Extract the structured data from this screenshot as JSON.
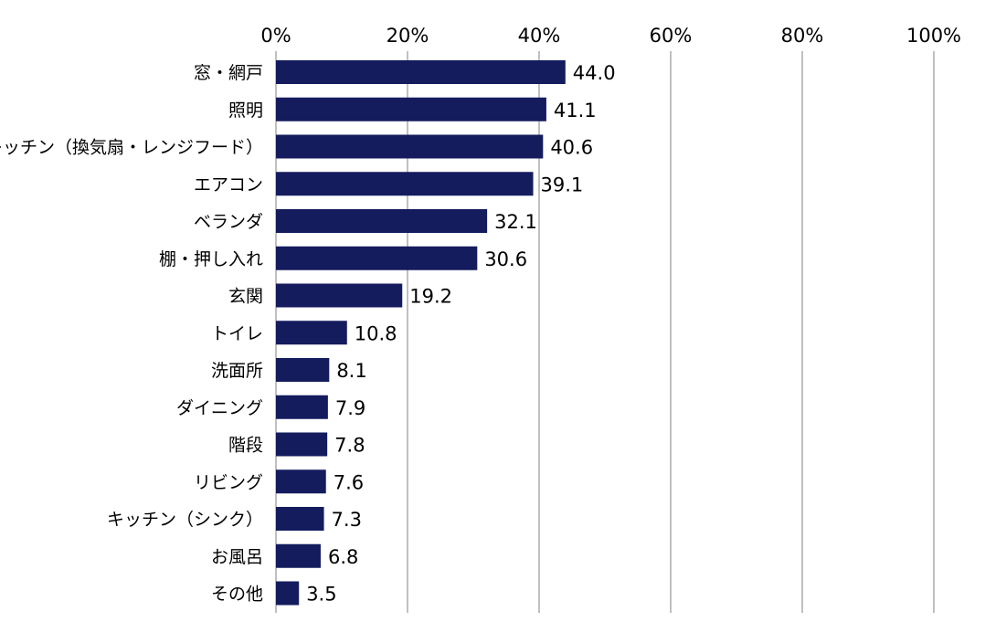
{
  "chart_data": {
    "type": "bar",
    "orientation": "horizontal",
    "title": "",
    "xlabel": "",
    "ylabel": "",
    "xlim": [
      0,
      100
    ],
    "x_ticks": [
      0,
      20,
      40,
      60,
      80,
      100
    ],
    "x_tick_labels": [
      "0%",
      "20%",
      "40%",
      "60%",
      "80%",
      "100%"
    ],
    "grid": "vertical",
    "categories": [
      "窓・網戸",
      "照明",
      "キッチン（換気扇・レンジフード）",
      "エアコン",
      "ベランダ",
      "棚・押し入れ",
      "玄関",
      "トイレ",
      "洗面所",
      "ダイニング",
      "階段",
      "リビング",
      "キッチン（シンク）",
      "お風呂",
      "その他"
    ],
    "values": [
      44.0,
      41.1,
      40.6,
      39.1,
      32.1,
      30.6,
      19.2,
      10.8,
      8.1,
      7.9,
      7.8,
      7.6,
      7.3,
      6.8,
      3.5
    ],
    "value_labels": [
      "44.0",
      "41.1",
      "40.6",
      "39.1",
      "32.1",
      "30.6",
      "19.2",
      "10.8",
      "8.1",
      "7.9",
      "7.8",
      "7.6",
      "7.3",
      "6.8",
      "3.5"
    ],
    "bar_color": "#141c5e",
    "gridline_color": "#808080",
    "axis_color": "#808080"
  }
}
